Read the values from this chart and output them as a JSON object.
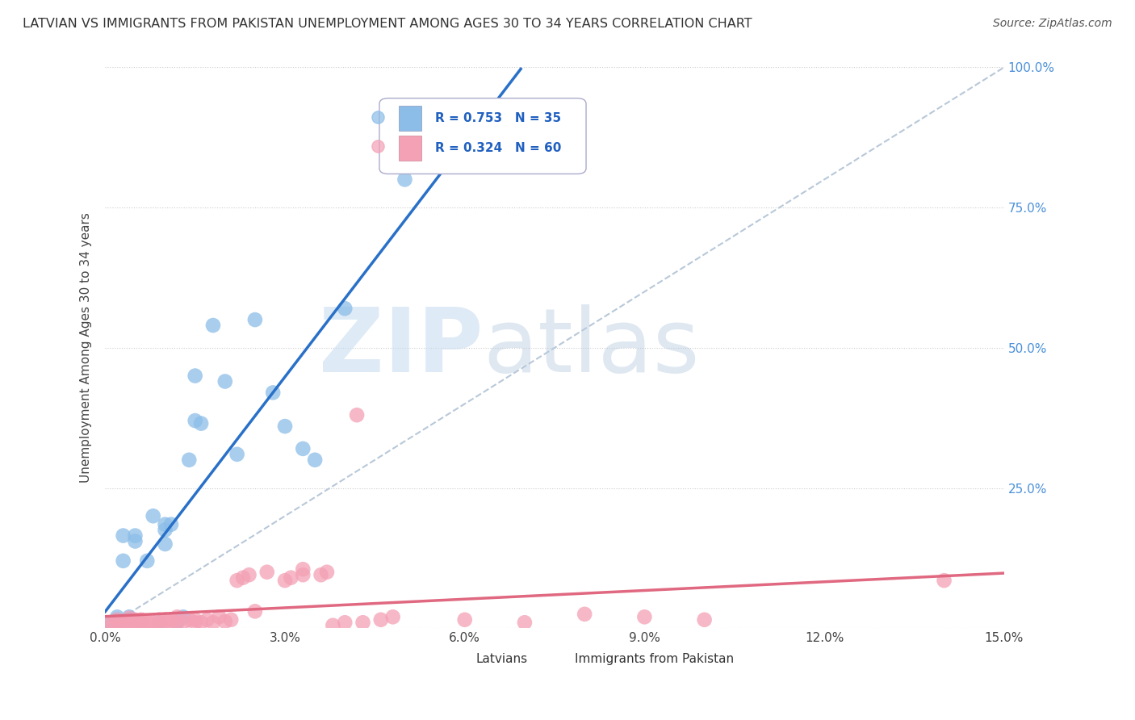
{
  "title": "LATVIAN VS IMMIGRANTS FROM PAKISTAN UNEMPLOYMENT AMONG AGES 30 TO 34 YEARS CORRELATION CHART",
  "source": "Source: ZipAtlas.com",
  "ylabel": "Unemployment Among Ages 30 to 34 years",
  "xlim": [
    0.0,
    0.15
  ],
  "ylim": [
    0.0,
    1.0
  ],
  "xticks": [
    0.0,
    0.03,
    0.06,
    0.09,
    0.12,
    0.15
  ],
  "xtick_labels": [
    "0.0%",
    "3.0%",
    "6.0%",
    "9.0%",
    "12.0%",
    "15.0%"
  ],
  "yticks": [
    0.0,
    0.25,
    0.5,
    0.75,
    1.0
  ],
  "ytick_labels": [
    "",
    "25.0%",
    "50.0%",
    "75.0%",
    "100.0%"
  ],
  "latvian_color": "#8bbde8",
  "pakistan_color": "#f4a0b5",
  "latvian_line_color": "#2970c8",
  "pakistan_line_color": "#e06880",
  "latvian_R": 0.753,
  "latvian_N": 35,
  "pakistan_R": 0.324,
  "pakistan_N": 60,
  "watermark_zip": "ZIP",
  "watermark_atlas": "atlas",
  "background_color": "#ffffff",
  "grid_color": "#cccccc",
  "latvian_x": [
    0.001,
    0.001,
    0.002,
    0.002,
    0.002,
    0.003,
    0.003,
    0.004,
    0.004,
    0.005,
    0.005,
    0.006,
    0.007,
    0.008,
    0.009,
    0.01,
    0.01,
    0.01,
    0.011,
    0.012,
    0.013,
    0.014,
    0.015,
    0.015,
    0.016,
    0.018,
    0.02,
    0.022,
    0.025,
    0.028,
    0.03,
    0.033,
    0.035,
    0.04,
    0.05
  ],
  "latvian_y": [
    0.005,
    0.01,
    0.015,
    0.008,
    0.02,
    0.12,
    0.165,
    0.015,
    0.02,
    0.155,
    0.165,
    0.01,
    0.12,
    0.2,
    0.01,
    0.15,
    0.175,
    0.185,
    0.185,
    0.01,
    0.02,
    0.3,
    0.37,
    0.45,
    0.365,
    0.54,
    0.44,
    0.31,
    0.55,
    0.42,
    0.36,
    0.32,
    0.3,
    0.57,
    0.8
  ],
  "pakistan_x": [
    0.001,
    0.001,
    0.002,
    0.002,
    0.003,
    0.003,
    0.004,
    0.004,
    0.004,
    0.005,
    0.005,
    0.005,
    0.006,
    0.006,
    0.006,
    0.007,
    0.007,
    0.008,
    0.008,
    0.009,
    0.009,
    0.01,
    0.01,
    0.011,
    0.011,
    0.012,
    0.012,
    0.013,
    0.014,
    0.015,
    0.015,
    0.016,
    0.017,
    0.018,
    0.019,
    0.02,
    0.021,
    0.022,
    0.023,
    0.024,
    0.025,
    0.027,
    0.03,
    0.031,
    0.033,
    0.033,
    0.036,
    0.037,
    0.038,
    0.04,
    0.042,
    0.043,
    0.046,
    0.048,
    0.06,
    0.07,
    0.08,
    0.09,
    0.1,
    0.14
  ],
  "pakistan_y": [
    0.005,
    0.01,
    0.005,
    0.015,
    0.008,
    0.012,
    0.01,
    0.018,
    0.005,
    0.008,
    0.01,
    0.015,
    0.005,
    0.01,
    0.015,
    0.01,
    0.012,
    0.005,
    0.01,
    0.008,
    0.015,
    0.01,
    0.015,
    0.01,
    0.015,
    0.01,
    0.02,
    0.01,
    0.015,
    0.01,
    0.015,
    0.01,
    0.015,
    0.01,
    0.02,
    0.012,
    0.015,
    0.085,
    0.09,
    0.095,
    0.03,
    0.1,
    0.085,
    0.09,
    0.095,
    0.105,
    0.095,
    0.1,
    0.005,
    0.01,
    0.38,
    0.01,
    0.015,
    0.02,
    0.015,
    0.01,
    0.025,
    0.02,
    0.015,
    0.085
  ]
}
